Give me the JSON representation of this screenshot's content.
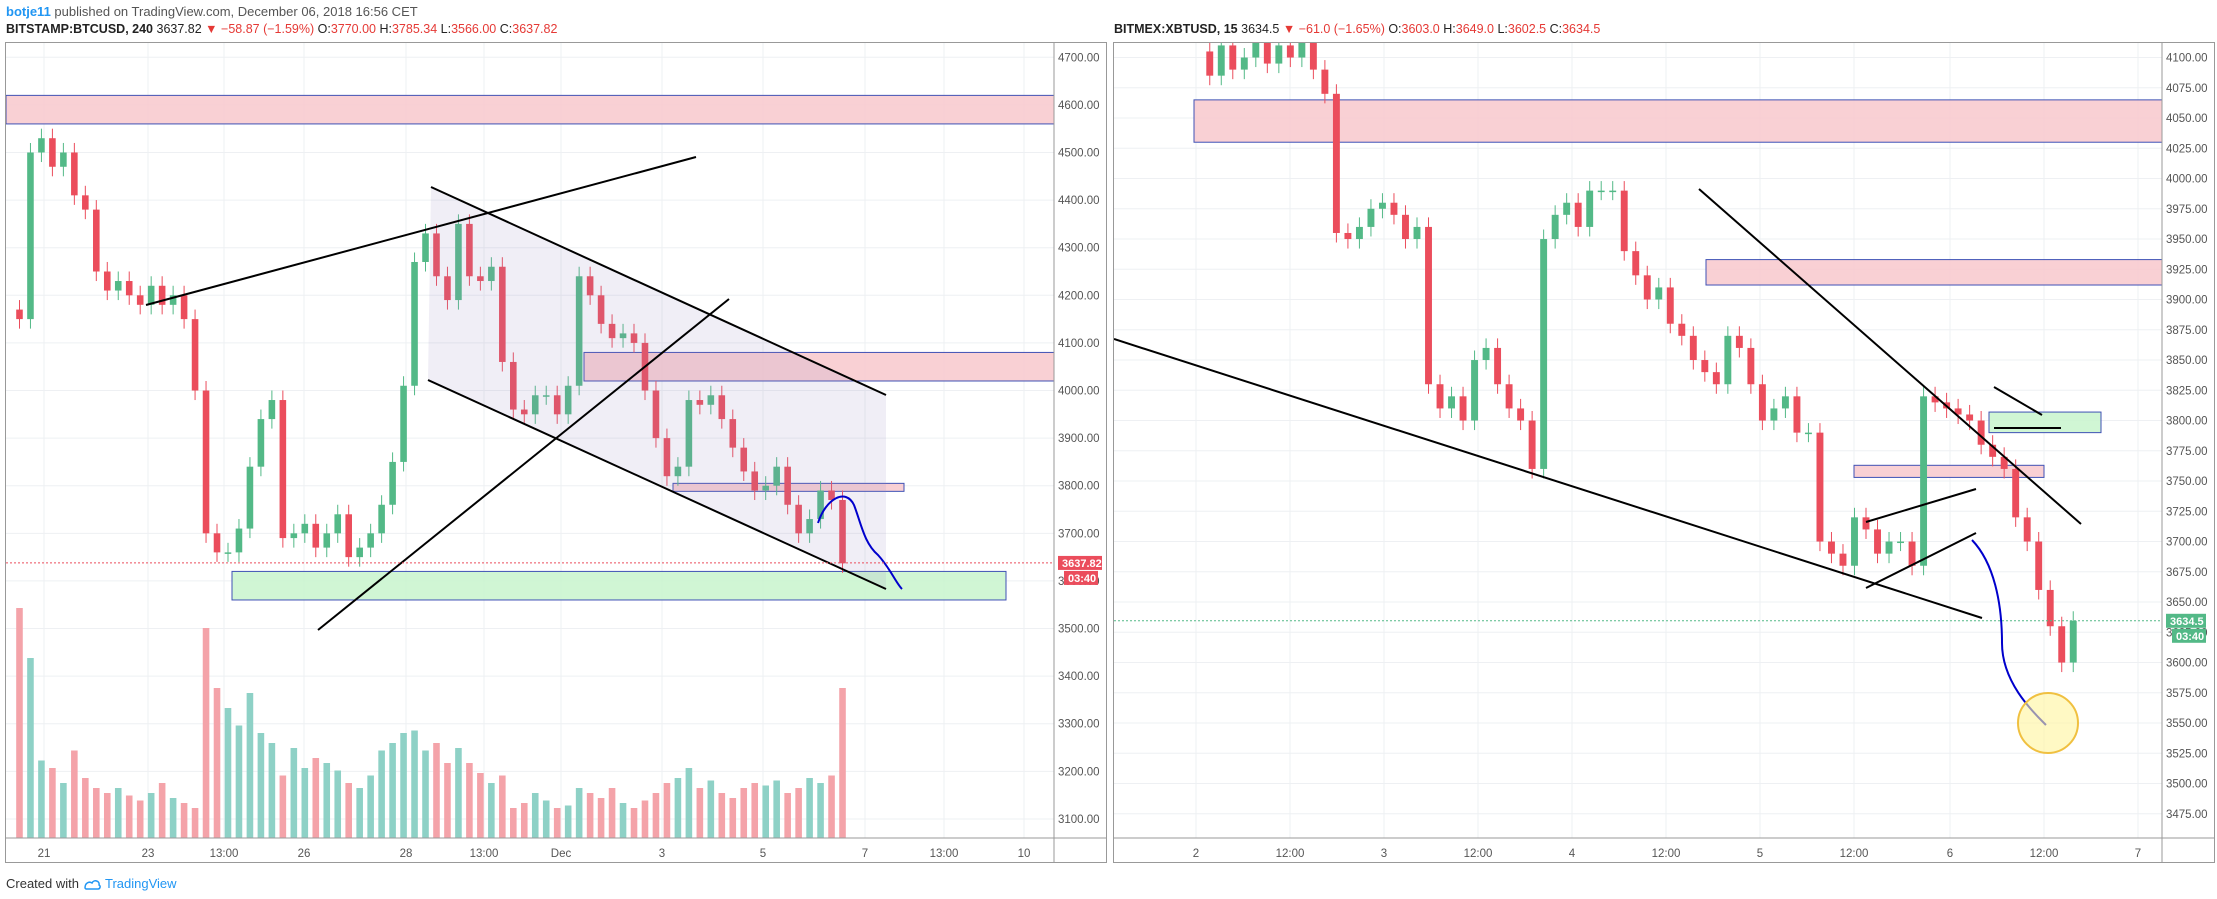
{
  "header": {
    "author": "botje11",
    "published": "published on TradingView.com, December 06, 2018 16:56 CET"
  },
  "left": {
    "symbol": "BITSTAMP:BTCUSD, 240",
    "last": "3637.82",
    "change": "▼ −58.87 (−1.59%)",
    "ohlc": {
      "o": "3770.00",
      "h": "3785.34",
      "l": "3566.00",
      "c": "3637.82"
    },
    "price_tag": "3637.82",
    "time_tag": "03:40"
  },
  "right": {
    "symbol": "BITMEX:XBTUSD, 15",
    "last": "3634.5",
    "change": "▼ −61.0 (−1.65%)",
    "ohlc": {
      "o": "3603.0",
      "h": "3649.0",
      "l": "3602.5",
      "c": "3634.5"
    },
    "price_tag": "3634.5",
    "time_tag": "03:40"
  },
  "footer": {
    "created_with": "Created with",
    "brand": "TradingView"
  },
  "colors": {
    "up": "#53b987",
    "down": "#eb4d5c",
    "vol_up": "#8ed1c6",
    "vol_down": "#f4a3a9",
    "zone_red": "#f8c8cc",
    "zone_green": "#c8f5cc",
    "blue_line": "#0000cc"
  },
  "chart_data": [
    {
      "type": "candlestick",
      "title": "BITSTAMP:BTCUSD, 240",
      "x_tick_labels": [
        "21",
        "23",
        "13:00",
        "26",
        "28",
        "13:00",
        "Dec",
        "3",
        "5",
        "7",
        "13:00",
        "10"
      ],
      "y_ticks": [
        3100,
        3200,
        3300,
        3400,
        3500,
        3600,
        3700,
        3800,
        3900,
        4000,
        4100,
        4200,
        4300,
        4400,
        4500,
        4600,
        4700
      ],
      "ylim": [
        3060,
        4730
      ],
      "last_price": 3637.82,
      "close_path": [
        4150,
        4500,
        4530,
        4470,
        4500,
        4410,
        4380,
        4250,
        4210,
        4230,
        4200,
        4180,
        4220,
        4180,
        4200,
        4150,
        4000,
        3700,
        3660,
        3660,
        3710,
        3840,
        3940,
        3980,
        3690,
        3700,
        3720,
        3670,
        3700,
        3740,
        3650,
        3670,
        3700,
        3760,
        3850,
        4010,
        4270,
        4330,
        4240,
        4190,
        4350,
        4240,
        4230,
        4260,
        4060,
        3960,
        3950,
        3990,
        3990,
        3950,
        4010,
        4240,
        4200,
        4140,
        4110,
        4120,
        4100,
        4000,
        3900,
        3820,
        3840,
        3980,
        3970,
        3990,
        3940,
        3880,
        3830,
        3790,
        3800,
        3840,
        3760,
        3700,
        3730,
        3790,
        3770,
        3637
      ],
      "volume_relative": [
        0.92,
        0.72,
        0.31,
        0.28,
        0.22,
        0.35,
        0.24,
        0.2,
        0.18,
        0.2,
        0.17,
        0.15,
        0.18,
        0.22,
        0.16,
        0.14,
        0.12,
        0.84,
        0.6,
        0.52,
        0.45,
        0.58,
        0.42,
        0.38,
        0.25,
        0.36,
        0.28,
        0.32,
        0.3,
        0.27,
        0.22,
        0.2,
        0.25,
        0.35,
        0.38,
        0.42,
        0.43,
        0.35,
        0.38,
        0.3,
        0.36,
        0.3,
        0.26,
        0.22,
        0.25,
        0.12,
        0.14,
        0.18,
        0.15,
        0.12,
        0.13,
        0.2,
        0.18,
        0.16,
        0.2,
        0.14,
        0.12,
        0.15,
        0.18,
        0.22,
        0.24,
        0.28,
        0.2,
        0.23,
        0.18,
        0.16,
        0.2,
        0.22,
        0.21,
        0.23,
        0.18,
        0.2,
        0.24,
        0.22,
        0.25,
        0.6
      ],
      "zones": [
        {
          "kind": "resistance",
          "y": [
            4560,
            4620
          ]
        },
        {
          "kind": "resistance",
          "y": [
            4020,
            4080
          ]
        },
        {
          "kind": "resistance",
          "y": [
            3790,
            3805
          ]
        },
        {
          "kind": "support",
          "y": [
            3560,
            3620
          ]
        }
      ]
    },
    {
      "type": "candlestick",
      "title": "BITMEX:XBTUSD, 15",
      "x_tick_labels": [
        "2",
        "12:00",
        "3",
        "12:00",
        "4",
        "12:00",
        "5",
        "12:00",
        "6",
        "12:00",
        "7"
      ],
      "y_ticks": [
        3475,
        3500,
        3525,
        3550,
        3575,
        3600,
        3625,
        3650,
        3675,
        3700,
        3725,
        3750,
        3775,
        3800,
        3825,
        3850,
        3875,
        3900,
        3925,
        3950,
        3975,
        4000,
        4025,
        4050,
        4075,
        4100
      ],
      "ylim": [
        3455,
        4112
      ],
      "last_price": 3634.5,
      "close_path": [
        4085,
        4110,
        4090,
        4100,
        4120,
        4095,
        4110,
        4100,
        4115,
        4090,
        4070,
        3955,
        3950,
        3960,
        3975,
        3980,
        3970,
        3950,
        3960,
        3830,
        3810,
        3820,
        3800,
        3850,
        3860,
        3830,
        3810,
        3800,
        3760,
        3950,
        3970,
        3980,
        3960,
        3990,
        3990,
        3990,
        3940,
        3920,
        3900,
        3910,
        3880,
        3870,
        3850,
        3840,
        3830,
        3870,
        3860,
        3830,
        3800,
        3810,
        3820,
        3790,
        3790,
        3700,
        3690,
        3680,
        3720,
        3710,
        3690,
        3700,
        3700,
        3680,
        3820,
        3815,
        3810,
        3805,
        3800,
        3780,
        3770,
        3760,
        3720,
        3700,
        3660,
        3630,
        3600,
        3634.5
      ],
      "zones": [
        {
          "kind": "resistance",
          "y": [
            4030,
            4065
          ]
        },
        {
          "kind": "resistance",
          "y": [
            3912,
            3933
          ]
        },
        {
          "kind": "resistance",
          "y": [
            3753,
            3763
          ]
        },
        {
          "kind": "support",
          "y": [
            3790,
            3807
          ]
        }
      ]
    }
  ]
}
